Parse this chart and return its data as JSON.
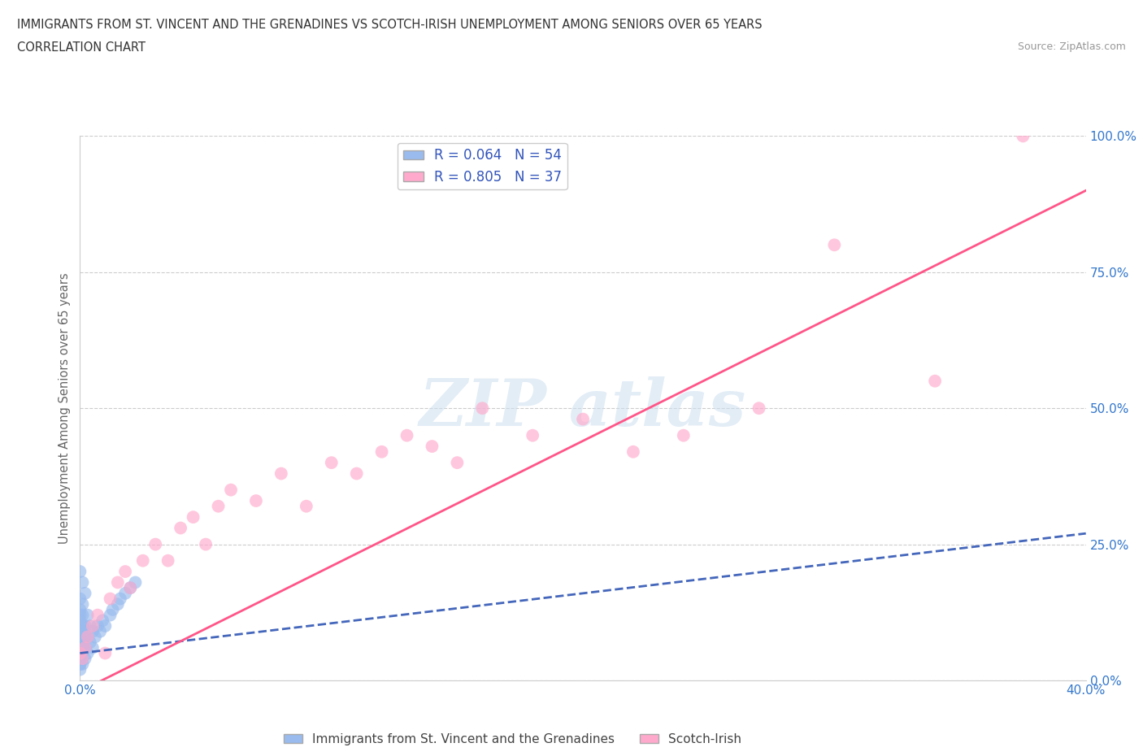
{
  "title_line1": "IMMIGRANTS FROM ST. VINCENT AND THE GRENADINES VS SCOTCH-IRISH UNEMPLOYMENT AMONG SENIORS OVER 65 YEARS",
  "title_line2": "CORRELATION CHART",
  "source": "Source: ZipAtlas.com",
  "ylabel": "Unemployment Among Seniors over 65 years",
  "xlim": [
    0.0,
    0.4
  ],
  "ylim": [
    0.0,
    1.0
  ],
  "xticks": [
    0.0,
    0.1,
    0.2,
    0.3,
    0.4
  ],
  "xtick_labels": [
    "0.0%",
    "",
    "",
    "",
    "40.0%"
  ],
  "yticks": [
    0.0,
    0.25,
    0.5,
    0.75,
    1.0
  ],
  "ytick_labels": [
    "0.0%",
    "25.0%",
    "50.0%",
    "75.0%",
    "100.0%"
  ],
  "blue_R": 0.064,
  "blue_N": 54,
  "pink_R": 0.805,
  "pink_N": 37,
  "blue_color": "#99BBEE",
  "pink_color": "#FFAACC",
  "blue_line_color": "#4466BB",
  "pink_line_color": "#FF5588",
  "legend_label_blue": "Immigrants from St. Vincent and the Grenadines",
  "legend_label_pink": "Scotch-Irish",
  "blue_x": [
    0.0,
    0.0,
    0.0,
    0.0,
    0.0,
    0.0,
    0.0,
    0.0,
    0.0,
    0.0,
    0.0,
    0.0,
    0.0,
    0.0,
    0.0,
    0.0,
    0.0,
    0.0,
    0.0,
    0.0,
    0.001,
    0.001,
    0.001,
    0.001,
    0.001,
    0.001,
    0.001,
    0.001,
    0.001,
    0.001,
    0.002,
    0.002,
    0.002,
    0.002,
    0.002,
    0.003,
    0.003,
    0.003,
    0.004,
    0.004,
    0.005,
    0.005,
    0.006,
    0.007,
    0.008,
    0.009,
    0.01,
    0.012,
    0.013,
    0.015,
    0.016,
    0.018,
    0.02,
    0.022
  ],
  "blue_y": [
    0.02,
    0.03,
    0.04,
    0.05,
    0.06,
    0.07,
    0.08,
    0.09,
    0.1,
    0.11,
    0.03,
    0.04,
    0.05,
    0.06,
    0.07,
    0.08,
    0.12,
    0.13,
    0.15,
    0.2,
    0.03,
    0.04,
    0.05,
    0.06,
    0.07,
    0.08,
    0.1,
    0.12,
    0.14,
    0.18,
    0.04,
    0.06,
    0.08,
    0.1,
    0.16,
    0.05,
    0.08,
    0.12,
    0.07,
    0.1,
    0.06,
    0.09,
    0.08,
    0.1,
    0.09,
    0.11,
    0.1,
    0.12,
    0.13,
    0.14,
    0.15,
    0.16,
    0.17,
    0.18
  ],
  "blue_trend_x": [
    0.0,
    0.4
  ],
  "blue_trend_y": [
    0.05,
    0.27
  ],
  "pink_x": [
    0.0,
    0.001,
    0.002,
    0.003,
    0.005,
    0.007,
    0.01,
    0.012,
    0.015,
    0.018,
    0.02,
    0.025,
    0.03,
    0.035,
    0.04,
    0.045,
    0.05,
    0.055,
    0.06,
    0.07,
    0.08,
    0.09,
    0.1,
    0.11,
    0.12,
    0.13,
    0.14,
    0.15,
    0.16,
    0.18,
    0.2,
    0.22,
    0.24,
    0.27,
    0.3,
    0.34,
    0.375
  ],
  "pink_y": [
    0.05,
    0.04,
    0.06,
    0.08,
    0.1,
    0.12,
    0.05,
    0.15,
    0.18,
    0.2,
    0.17,
    0.22,
    0.25,
    0.22,
    0.28,
    0.3,
    0.25,
    0.32,
    0.35,
    0.33,
    0.38,
    0.32,
    0.4,
    0.38,
    0.42,
    0.45,
    0.43,
    0.4,
    0.5,
    0.45,
    0.48,
    0.42,
    0.45,
    0.5,
    0.8,
    0.55,
    1.0
  ],
  "pink_trend_x": [
    0.0,
    0.4
  ],
  "pink_trend_y": [
    -0.02,
    0.9
  ]
}
